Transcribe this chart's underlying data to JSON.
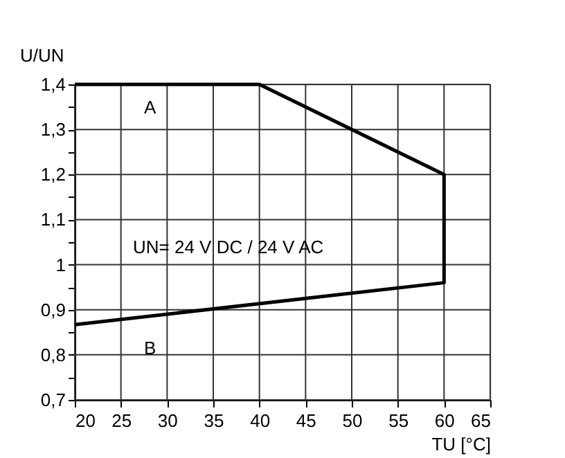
{
  "chart_data": {
    "type": "line",
    "x": [
      20,
      40,
      60,
      60,
      20
    ],
    "values": [
      1.4,
      1.4,
      1.2,
      0.96,
      0.867
    ],
    "color": "#000000",
    "xlabel": "TU [°C]",
    "ylabel": "U/UN",
    "xlim": [
      20,
      65
    ],
    "ylim": [
      0.7,
      1.4
    ],
    "xticks": [
      20,
      25,
      30,
      35,
      40,
      45,
      50,
      55,
      60,
      65
    ],
    "yticks": [
      {
        "value": 0.7,
        "label": "0,7"
      },
      {
        "value": 0.75,
        "label": null
      },
      {
        "value": 0.8,
        "label": "0,8"
      },
      {
        "value": 0.85,
        "label": null
      },
      {
        "value": 0.9,
        "label": "0,9"
      },
      {
        "value": 0.95,
        "label": null
      },
      {
        "value": 1.0,
        "label": "1"
      },
      {
        "value": 1.05,
        "label": null
      },
      {
        "value": 1.1,
        "label": "1,1"
      },
      {
        "value": 1.15,
        "label": null
      },
      {
        "value": 1.2,
        "label": "1,2"
      },
      {
        "value": 1.25,
        "label": null
      },
      {
        "value": 1.3,
        "label": "1,3"
      },
      {
        "value": 1.35,
        "label": null
      },
      {
        "value": 1.4,
        "label": "1,4"
      }
    ],
    "grid": true,
    "annotations": [
      "A",
      "B",
      "UN= 24 V DC / 24 V AC"
    ]
  }
}
